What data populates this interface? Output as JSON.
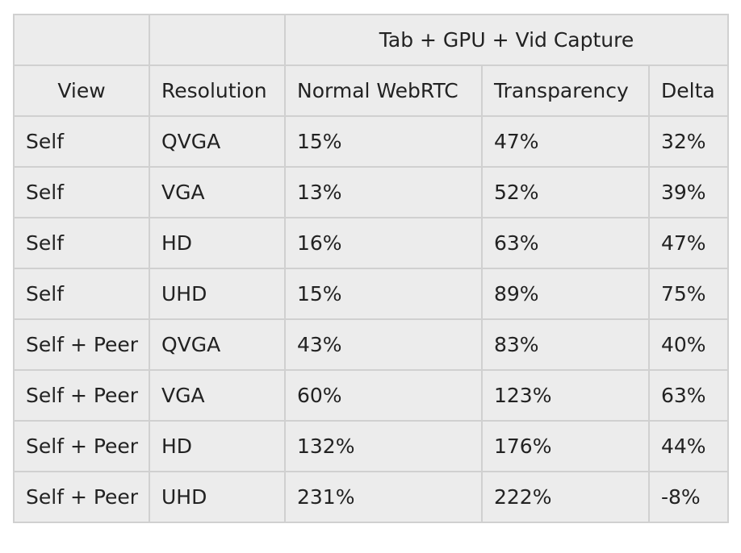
{
  "table": {
    "group_header": "Tab + GPU + Vid Capture",
    "columns": [
      "View",
      "Resolution",
      "Normal WebRTC",
      "Transparency",
      "Delta"
    ],
    "rows": [
      [
        "Self",
        "QVGA",
        "15%",
        "47%",
        "32%"
      ],
      [
        "Self",
        "VGA",
        "13%",
        "52%",
        "39%"
      ],
      [
        "Self",
        "HD",
        "16%",
        "63%",
        "47%"
      ],
      [
        "Self",
        "UHD",
        "15%",
        "89%",
        "75%"
      ],
      [
        "Self + Peer",
        "QVGA",
        "43%",
        "83%",
        "40%"
      ],
      [
        "Self + Peer",
        "VGA",
        "60%",
        "123%",
        "63%"
      ],
      [
        "Self + Peer",
        "HD",
        "132%",
        "176%",
        "44%"
      ],
      [
        "Self + Peer",
        "UHD",
        "231%",
        "222%",
        "-8%"
      ]
    ]
  }
}
